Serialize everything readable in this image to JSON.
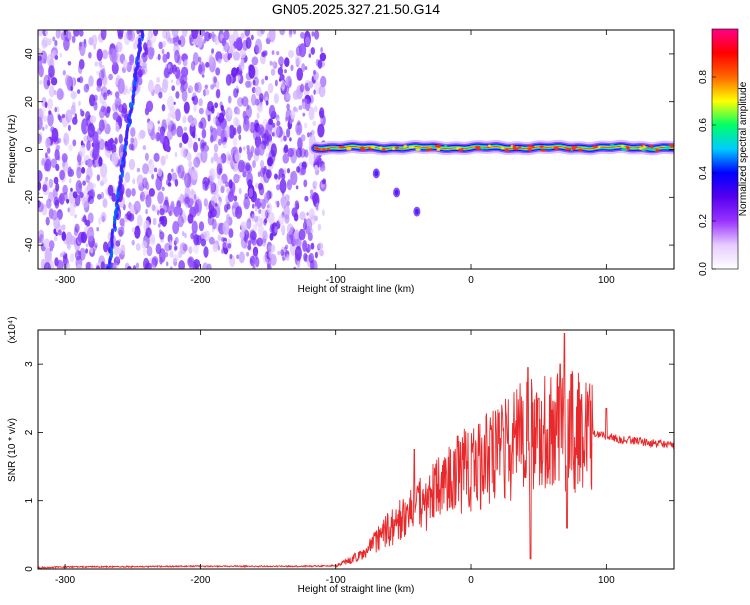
{
  "title": "GN05.2025.327.21.50.G14",
  "chart_data": [
    {
      "type": "heatmap",
      "xlabel": "Height of straight line (km)",
      "ylabel": "Frequency (Hz)",
      "xlim": [
        -320,
        150
      ],
      "ylim": [
        -50,
        50
      ],
      "xticks": [
        -300,
        -200,
        -100,
        0,
        100
      ],
      "yticks": [
        -40,
        -20,
        0,
        20,
        40
      ],
      "colorbar": {
        "label": "Normalized spectral amplitude",
        "range": [
          0,
          1
        ],
        "ticks": [
          "0.0",
          "0.2",
          "0.4",
          "0.6",
          "0.8"
        ],
        "colors": [
          "#ffffff",
          "#e6ccff",
          "#9933ff",
          "#5500ee",
          "#0000ff",
          "#00ccff",
          "#00ff66",
          "#ffff00",
          "#ff6600",
          "#ff0000",
          "#ff0088"
        ]
      },
      "noise_region_x": [
        -320,
        -108
      ],
      "carrier_frequency_hz": 0,
      "features": [
        {
          "x": -260,
          "y": 0
        },
        {
          "x": -80,
          "y": 0
        },
        {
          "x": -70,
          "y": -10
        },
        {
          "x": -55,
          "y": -18
        },
        {
          "x": -40,
          "y": -26
        },
        {
          "x": -20,
          "y": 0
        },
        {
          "x": 0,
          "y": 0
        },
        {
          "x": 50,
          "y": 0
        },
        {
          "x": 100,
          "y": 0
        },
        {
          "x": 150,
          "y": 0
        }
      ]
    },
    {
      "type": "line",
      "xlabel": "Height of straight line (km)",
      "ylabel": "SNR (10 * v/v)",
      "scale_label": "(x10⁴)",
      "xlim": [
        -320,
        150
      ],
      "ylim": [
        0,
        3.5
      ],
      "xticks": [
        -300,
        -200,
        -100,
        0,
        100
      ],
      "yticks": [
        0,
        1,
        2,
        3
      ],
      "series": [
        {
          "color": "#e8282a",
          "envelope": {
            "x": [
              -320,
              -300,
              -200,
              -120,
              -100,
              -90,
              -80,
              -70,
              -60,
              -50,
              -40,
              -30,
              -20,
              -10,
              0,
              10,
              20,
              30,
              40,
              50,
              60,
              70,
              80,
              90,
              100,
              110,
              120,
              130,
              140,
              150
            ],
            "y": [
              0.02,
              0.03,
              0.04,
              0.04,
              0.05,
              0.12,
              0.22,
              0.4,
              0.6,
              0.75,
              0.9,
              1.05,
              1.2,
              1.35,
              1.5,
              1.6,
              1.7,
              1.8,
              1.95,
              2.0,
              2.05,
              2.05,
              2.0,
              1.98,
              1.95,
              1.9,
              1.88,
              1.85,
              1.83,
              1.81
            ]
          },
          "spikes": [
            {
              "x": -42,
              "y": 1.75
            },
            {
              "x": 42,
              "y": 2.95
            },
            {
              "x": 44,
              "y": 0.15
            },
            {
              "x": 50,
              "y": 2.5
            },
            {
              "x": 66,
              "y": 3.0
            },
            {
              "x": 69,
              "y": 3.45
            },
            {
              "x": 71,
              "y": 0.6
            },
            {
              "x": 74,
              "y": 2.85
            },
            {
              "x": 100,
              "y": 2.35
            }
          ]
        }
      ]
    }
  ]
}
